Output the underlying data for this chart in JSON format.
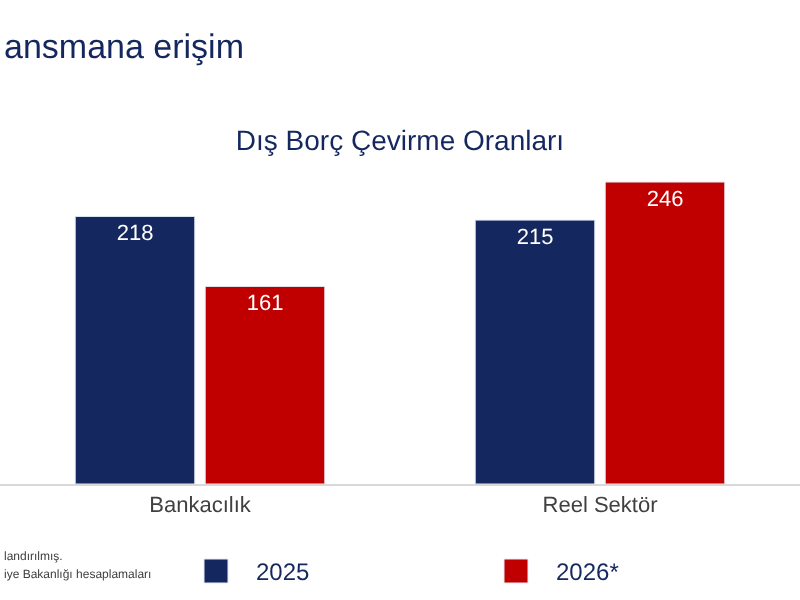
{
  "chart_data": {
    "type": "bar",
    "title": "Dış Borç Çevirme Oranları",
    "categories": [
      "Bankacılık",
      "Reel Sektör"
    ],
    "series": [
      {
        "name": "2025",
        "color": "#14275e",
        "values": [
          218,
          215
        ]
      },
      {
        "name": "2026*",
        "color": "#c00000",
        "values": [
          161,
          246
        ]
      }
    ],
    "data_labels": true,
    "legend": "bottom",
    "annotations": [
      "ansmana erişim",
      "landırılmış.",
      "iye Bakanlığı hesaplamaları"
    ]
  }
}
